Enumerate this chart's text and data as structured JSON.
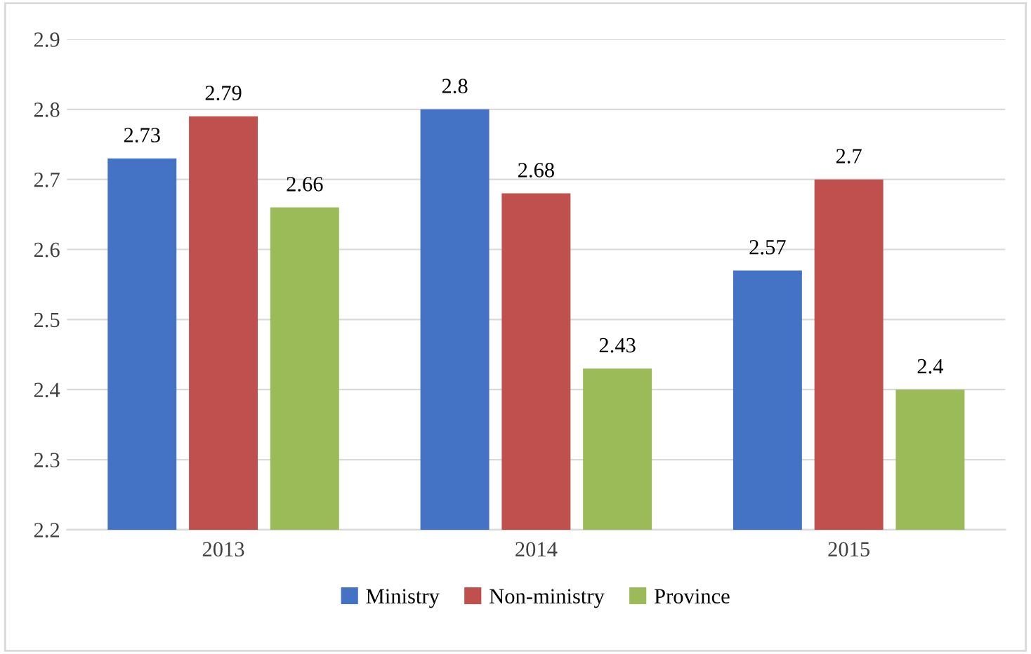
{
  "chart_data": {
    "type": "bar",
    "categories": [
      "2013",
      "2014",
      "2015"
    ],
    "series": [
      {
        "name": "Ministry",
        "color": "#4472c4",
        "values": [
          2.73,
          2.8,
          2.57
        ]
      },
      {
        "name": "Non-ministry",
        "color": "#c0504d",
        "values": [
          2.79,
          2.68,
          2.7
        ]
      },
      {
        "name": "Province",
        "color": "#9bbb59",
        "values": [
          2.66,
          2.43,
          2.4
        ]
      }
    ],
    "ylim": [
      2.2,
      2.9
    ],
    "yticks": [
      2.2,
      2.3,
      2.4,
      2.5,
      2.6,
      2.7,
      2.8,
      2.9
    ],
    "grid": "y",
    "legend": "bottom",
    "data_labels": true
  }
}
